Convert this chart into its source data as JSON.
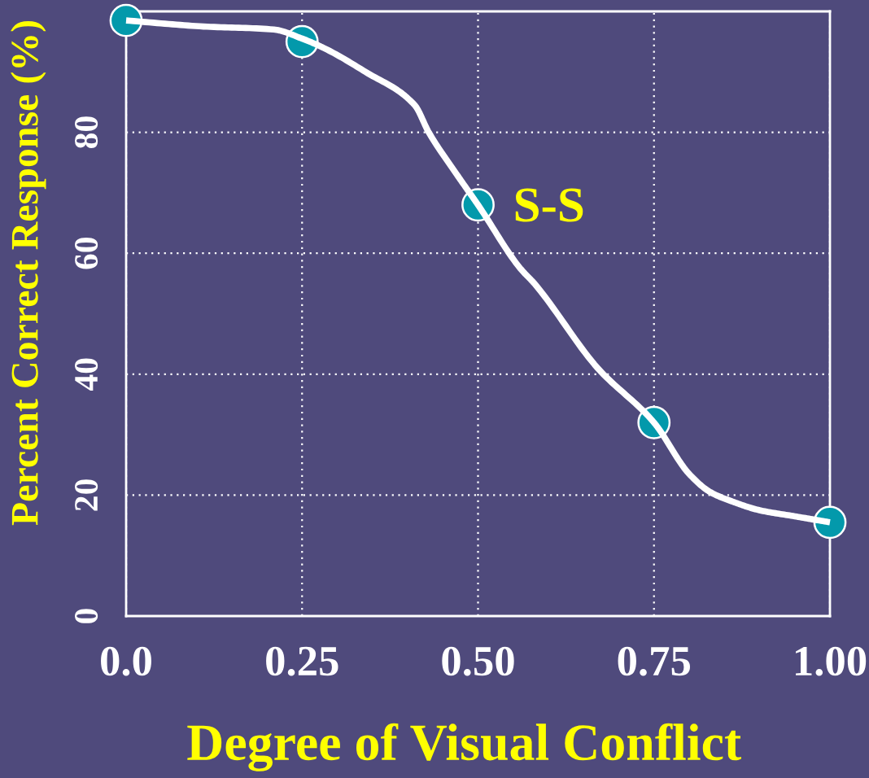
{
  "chart_data": {
    "type": "line",
    "xlabel": "Degree of Visual Conflict",
    "ylabel": "Percent Correct Response (%)",
    "xlim": [
      0,
      1
    ],
    "xticks": [
      {
        "value": 0,
        "label": "0.0"
      },
      0.25,
      {
        "value": 0.5,
        "label": "0.50"
      },
      0.75,
      {
        "value": 1,
        "label": "1.00"
      }
    ],
    "ylim": [
      0,
      100
    ],
    "yticks": [
      0,
      20,
      40,
      60,
      80
    ],
    "grid": true,
    "series": [
      {
        "color": "#ffffff",
        "marker": "none",
        "x": [
          0,
          0.11,
          0.21,
          0.25,
          0.28,
          0.34,
          0.41,
          0.43,
          0.47,
          0.5,
          0.56,
          0.58,
          0.67,
          0.75,
          0.8,
          0.83,
          0.86,
          0.9,
          0.95,
          1
        ],
        "values": [
          98.5,
          97.5,
          97,
          95.5,
          94,
          90,
          84.5,
          80,
          73,
          68,
          57.5,
          55,
          41,
          32,
          23.5,
          20.5,
          19,
          17.5,
          16.5,
          15.5
        ]
      },
      {
        "type": "scatter",
        "name": "S-S",
        "color": "#0399ab",
        "marker": "circle",
        "x": [
          0,
          0.25,
          0.5,
          0.75,
          1
        ],
        "values": [
          98.5,
          95,
          68,
          32,
          15.5
        ]
      }
    ]
  }
}
